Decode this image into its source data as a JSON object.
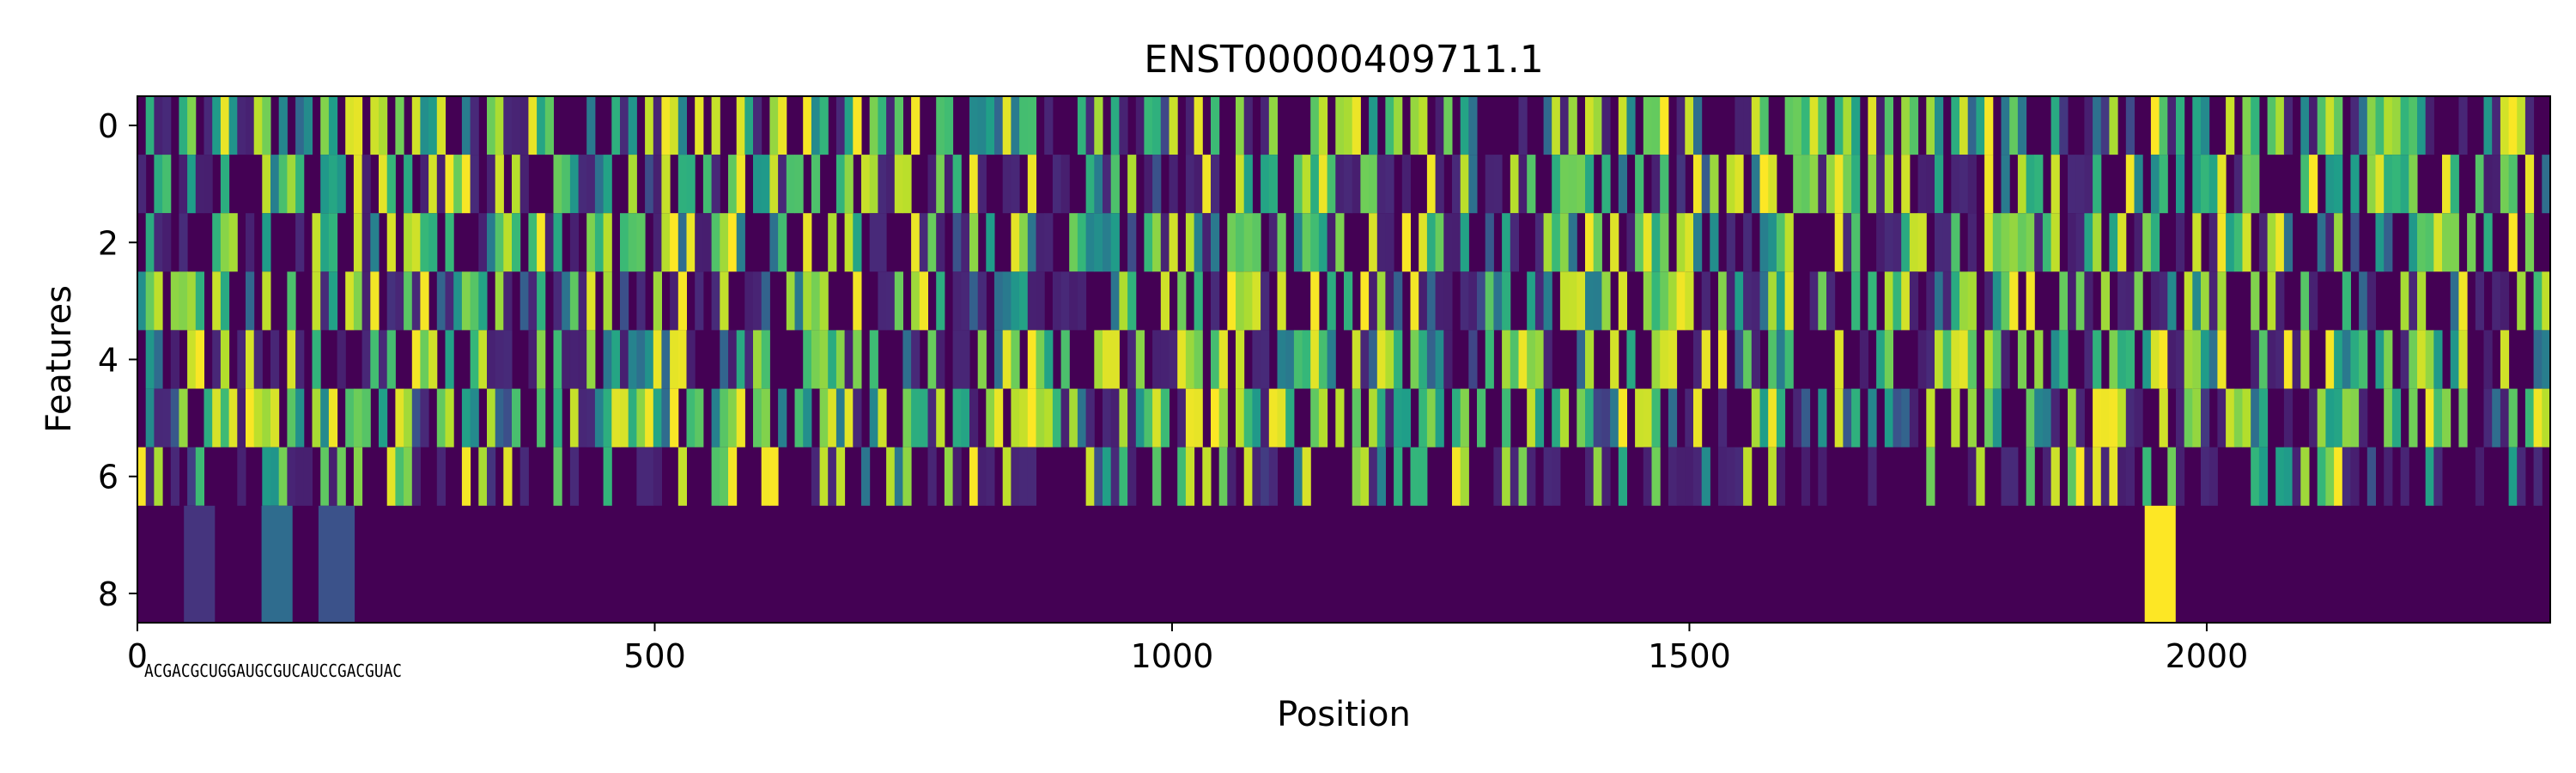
{
  "chart_data": {
    "type": "heatmap",
    "title": "ENST00000409711.1",
    "xlabel": "Position",
    "ylabel": "Features",
    "xlim": [
      0,
      2332
    ],
    "ylim": [
      8.5,
      -0.5
    ],
    "x_ticks": [
      0,
      500,
      1000,
      1500,
      2000
    ],
    "y_ticks": [
      0,
      2,
      4,
      6,
      8
    ],
    "rows": 9,
    "colormap": "viridis",
    "value_range": [
      0,
      1
    ],
    "grid": false,
    "legend": "none",
    "row_intensity_profile": [
      0.55,
      0.5,
      0.5,
      0.45,
      0.5,
      0.6,
      0.35,
      0.05,
      0.03
    ],
    "notable_regions": [
      {
        "rows": [
          7,
          8
        ],
        "x_range": [
          1940,
          1970
        ],
        "value": 1.0
      },
      {
        "rows": [
          7,
          8
        ],
        "x_range": [
          120,
          150
        ],
        "value": 0.35
      },
      {
        "rows": [
          7,
          8
        ],
        "x_range": [
          175,
          210
        ],
        "value": 0.25
      },
      {
        "rows": [
          7,
          8
        ],
        "x_range": [
          45,
          75
        ],
        "value": 0.15
      }
    ],
    "sequence_label_overlap": "ACGACGCUGGAUGCGUCAUCCGACGUAC"
  }
}
